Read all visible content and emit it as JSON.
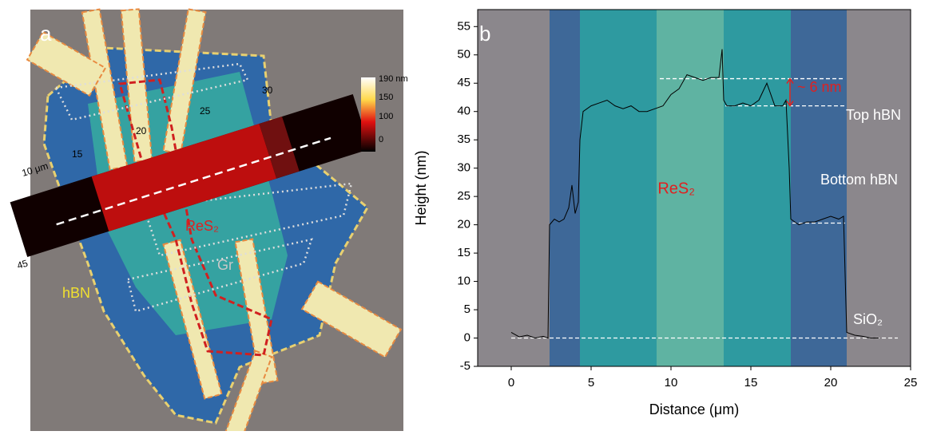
{
  "panel_a": {
    "panel_label": "a",
    "scale_labels": [
      "10 μm",
      "15",
      "20",
      "25",
      "30",
      "45"
    ],
    "colorbar_labels": [
      "190 nm",
      "150",
      "100",
      "0"
    ],
    "material_labels": [
      "hBN",
      "ReS₂",
      "Gr"
    ]
  },
  "chart_data": {
    "type": "line",
    "panel_label": "b",
    "x_label": "Distance (μm)",
    "y_label": "Height (nm)",
    "xlim": [
      -2.1,
      25
    ],
    "ylim": [
      -5,
      58
    ],
    "xticks": [
      0,
      5,
      10,
      15,
      20,
      25
    ],
    "yticks": [
      -5,
      0,
      5,
      10,
      15,
      20,
      25,
      30,
      35,
      40,
      45,
      50,
      55
    ],
    "bands": [
      {
        "x0": -2.1,
        "x1": 2.4,
        "color": "#8b878c"
      },
      {
        "x0": 2.4,
        "x1": 4.3,
        "color": "#3e6898"
      },
      {
        "x0": 4.3,
        "x1": 9.1,
        "color": "#2e9aa0"
      },
      {
        "x0": 9.1,
        "x1": 13.3,
        "color": "#5fb3a2"
      },
      {
        "x0": 13.3,
        "x1": 17.5,
        "color": "#2e9aa0"
      },
      {
        "x0": 17.5,
        "x1": 21.0,
        "color": "#3e6898"
      },
      {
        "x0": 21.0,
        "x1": 25,
        "color": "#8b878c"
      }
    ],
    "reference_lines": [
      {
        "y": 0,
        "xmin": 0,
        "xmax": 24.2
      },
      {
        "y": 45.8,
        "xmin": 9.3,
        "xmax": 20.9
      },
      {
        "y": 41,
        "xmin": 13.4,
        "xmax": 21
      },
      {
        "y": 20.3,
        "xmin": 17.6,
        "xmax": 20.9
      }
    ],
    "annotations": [
      "~ 6 nm",
      "Top hBN",
      "Bottom hBN",
      "ReS₂",
      "SiO₂"
    ],
    "series": [
      {
        "color": "#000000",
        "x": [
          0,
          0.5,
          1,
          1.5,
          2,
          2.3,
          2.4,
          2.7,
          3,
          3.3,
          3.6,
          3.8,
          4,
          4.2,
          4.3,
          4.5,
          5,
          5.5,
          6,
          6.5,
          7,
          7.5,
          8,
          8.5,
          9,
          9.5,
          10,
          10.5,
          11,
          11.5,
          12,
          12.5,
          13,
          13.2,
          13.3,
          13.5,
          14,
          14.5,
          15,
          15.5,
          16,
          16.5,
          17,
          17.2,
          17.4,
          17.5,
          18,
          18.5,
          19,
          19.5,
          20,
          20.5,
          20.8,
          21,
          21.5,
          22,
          22.5,
          23
        ],
        "values": [
          1,
          0.2,
          0.5,
          0,
          0.3,
          0,
          20,
          21,
          20.5,
          21,
          23,
          27,
          22,
          24,
          35,
          40,
          41,
          41.5,
          42,
          41,
          40.5,
          41,
          40,
          40,
          40.5,
          41,
          43,
          44,
          46.5,
          46,
          45.5,
          46,
          46,
          51,
          42,
          41,
          41,
          41.5,
          41,
          42,
          45,
          41,
          41,
          42,
          30,
          21,
          20,
          20.5,
          20.5,
          21,
          21.5,
          21,
          21.5,
          1,
          0.5,
          0.3,
          0,
          0
        ]
      }
    ]
  }
}
